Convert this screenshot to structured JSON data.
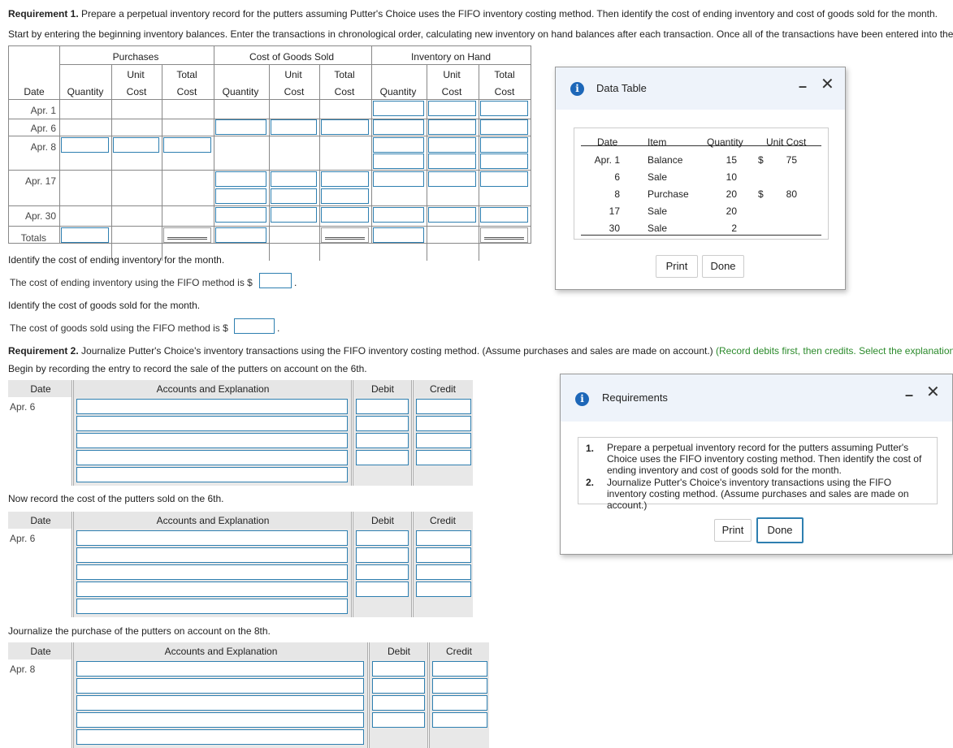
{
  "req1": {
    "label": "Requirement 1.",
    "text": " Prepare a perpetual inventory record for the putters assuming Putter's Choice uses the FIFO inventory costing method. Then identify the cost of ending inventory and cost of goods sold for the month.",
    "instruction": "Start by entering the beginning inventory balances. Enter the transactions in chronological order, calculating new inventory on hand balances after each transaction. Once all of the transactions have been entered into the perpe"
  },
  "inventory_table": {
    "group_headers": [
      "Purchases",
      "Cost of Goods Sold",
      "Inventory on Hand"
    ],
    "col_row1": [
      "Unit",
      "Total",
      "Unit",
      "Total",
      "Unit",
      "Total"
    ],
    "columns": [
      "Date",
      "Quantity",
      "Cost",
      "Cost",
      "Quantity",
      "Cost",
      "Cost",
      "Quantity",
      "Cost",
      "Cost"
    ],
    "dates": [
      "Apr. 1",
      "Apr. 6",
      "Apr. 8",
      "Apr. 17",
      "Apr. 30",
      "Totals"
    ]
  },
  "ending_inv": {
    "heading": "Identify the cost of ending inventory for the month.",
    "prompt": "The cost of ending inventory using the FIFO method is $",
    "suffix": "."
  },
  "cogs": {
    "heading": "Identify the cost of goods sold for the month.",
    "prompt": "The cost of goods sold using the FIFO method is $",
    "suffix": "."
  },
  "req2": {
    "label": "Requirement 2.",
    "text": " Journalize Putter's Choice's inventory transactions using the FIFO inventory costing method. (Assume purchases and sales are made on account.) ",
    "green": "(Record debits first, then credits. Select the explanation on th",
    "begin": "Begin by recording the entry to record the sale of the putters on account on the 6th."
  },
  "journal_headers": {
    "date": "Date",
    "accounts": "Accounts and Explanation",
    "debit": "Debit",
    "credit": "Credit"
  },
  "journal1": {
    "date": "Apr. 6"
  },
  "journal2": {
    "heading": "Now record the cost of the putters sold on the 6th.",
    "date": "Apr. 6"
  },
  "journal3": {
    "heading": "Journalize the purchase of the putters on account on the 8th.",
    "date": "Apr. 8"
  },
  "data_table_dialog": {
    "title": "Data Table",
    "icon": "info-icon",
    "headers": [
      "Date",
      "Item",
      "Quantity",
      "Unit Cost"
    ],
    "rows": [
      {
        "date": "Apr. 1",
        "item": "Balance",
        "qty": "15",
        "cur": "$",
        "cost": "75"
      },
      {
        "date": "6",
        "item": "Sale",
        "qty": "10",
        "cur": "",
        "cost": ""
      },
      {
        "date": "8",
        "item": "Purchase",
        "qty": "20",
        "cur": "$",
        "cost": "80"
      },
      {
        "date": "17",
        "item": "Sale",
        "qty": "20",
        "cur": "",
        "cost": ""
      },
      {
        "date": "30",
        "item": "Sale",
        "qty": "2",
        "cur": "",
        "cost": ""
      }
    ],
    "print": "Print",
    "done": "Done"
  },
  "requirements_dialog": {
    "title": "Requirements",
    "icon": "info-icon",
    "items": [
      {
        "num": "1.",
        "text": "Prepare a perpetual inventory record for the putters assuming Putter's Choice uses the FIFO inventory costing method. Then identify the cost of ending inventory and cost of goods sold for the month."
      },
      {
        "num": "2.",
        "text": "Journalize Putter's Choice's inventory transactions using the FIFO inventory costing method. (Assume purchases and sales are made on account.)"
      }
    ],
    "print": "Print",
    "done": "Done"
  },
  "colors": {
    "input_border": "#2e7fb0",
    "info_icon": "#1d67b8",
    "green_text": "#2b8a2b",
    "header_bg": "#e6e6e6"
  }
}
